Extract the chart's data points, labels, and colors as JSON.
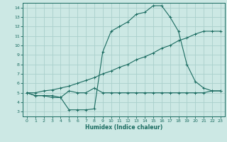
{
  "xlabel": "Humidex (Indice chaleur)",
  "bg_color": "#cce8e4",
  "grid_color": "#aad0cc",
  "line_color": "#1a6b60",
  "xlim": [
    -0.5,
    23.5
  ],
  "ylim": [
    2.5,
    14.5
  ],
  "xticks": [
    0,
    1,
    2,
    3,
    4,
    5,
    6,
    7,
    8,
    9,
    10,
    11,
    12,
    13,
    14,
    15,
    16,
    17,
    18,
    19,
    20,
    21,
    22,
    23
  ],
  "yticks": [
    3,
    4,
    5,
    6,
    7,
    8,
    9,
    10,
    11,
    12,
    13,
    14
  ],
  "line1_x": [
    0,
    1,
    2,
    3,
    4,
    5,
    6,
    7,
    8,
    9,
    10,
    11,
    12,
    13,
    14,
    15,
    16,
    17,
    18,
    19,
    20,
    21,
    22,
    23
  ],
  "line1_y": [
    5.0,
    4.7,
    4.7,
    4.5,
    4.5,
    3.2,
    3.2,
    3.2,
    3.3,
    9.3,
    11.5,
    12.0,
    12.5,
    13.3,
    13.5,
    14.2,
    14.2,
    13.0,
    11.5,
    8.0,
    6.2,
    5.5,
    5.2,
    5.2
  ],
  "line2_x": [
    0,
    1,
    2,
    3,
    4,
    5,
    6,
    7,
    8,
    9,
    10,
    11,
    12,
    13,
    14,
    15,
    16,
    17,
    18,
    19,
    20,
    21,
    22,
    23
  ],
  "line2_y": [
    5.0,
    5.0,
    5.2,
    5.3,
    5.5,
    5.7,
    6.0,
    6.3,
    6.6,
    7.0,
    7.3,
    7.7,
    8.0,
    8.5,
    8.8,
    9.2,
    9.7,
    10.0,
    10.5,
    10.8,
    11.2,
    11.5,
    11.5,
    11.5
  ],
  "line3_x": [
    0,
    1,
    2,
    3,
    4,
    5,
    6,
    7,
    8,
    9,
    10,
    11,
    12,
    13,
    14,
    15,
    16,
    17,
    18,
    19,
    20,
    21,
    22,
    23
  ],
  "line3_y": [
    5.0,
    4.7,
    4.7,
    4.7,
    4.5,
    5.2,
    5.0,
    5.0,
    5.5,
    5.0,
    5.0,
    5.0,
    5.0,
    5.0,
    5.0,
    5.0,
    5.0,
    5.0,
    5.0,
    5.0,
    5.0,
    5.0,
    5.2,
    5.2
  ]
}
